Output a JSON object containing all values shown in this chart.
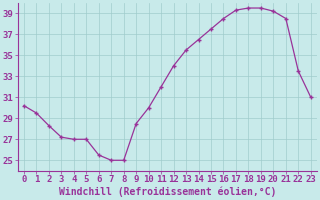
{
  "x": [
    0,
    1,
    2,
    3,
    4,
    5,
    6,
    7,
    8,
    9,
    10,
    11,
    12,
    13,
    14,
    15,
    16,
    17,
    18,
    19,
    20,
    21,
    22,
    23
  ],
  "y": [
    30.2,
    29.5,
    28.3,
    27.2,
    27.0,
    27.0,
    25.5,
    25.0,
    25.0,
    28.5,
    30.0,
    32.0,
    34.0,
    35.5,
    36.5,
    37.5,
    38.5,
    39.3,
    39.5,
    39.5,
    39.2,
    38.5,
    33.5,
    31.0
  ],
  "line_color": "#993399",
  "marker": "+",
  "marker_color": "#993399",
  "bg_color": "#c8eaea",
  "grid_color": "#a0cccc",
  "axis_color": "#993399",
  "spine_color": "#993399",
  "xlabel": "Windchill (Refroidissement éolien,°C)",
  "xlim": [
    -0.5,
    23.5
  ],
  "ylim": [
    24.0,
    40.0
  ],
  "yticks": [
    25,
    27,
    29,
    31,
    33,
    35,
    37,
    39
  ],
  "xticks": [
    0,
    1,
    2,
    3,
    4,
    5,
    6,
    7,
    8,
    9,
    10,
    11,
    12,
    13,
    14,
    15,
    16,
    17,
    18,
    19,
    20,
    21,
    22,
    23
  ],
  "tick_font_size": 6.5,
  "xlabel_font_size": 7.0,
  "linewidth": 0.9,
  "markersize": 3.5
}
